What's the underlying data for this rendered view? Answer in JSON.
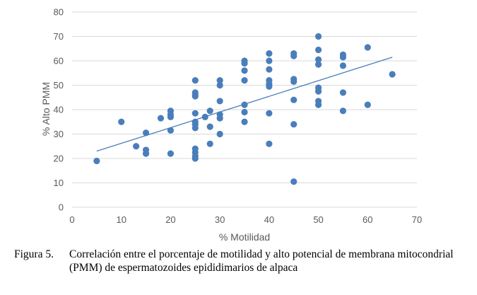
{
  "chart_data": {
    "type": "scatter",
    "title": "",
    "xlabel": "% Motilidad",
    "ylabel": "% Alto PMM",
    "xlim": [
      0,
      70
    ],
    "ylim": [
      0,
      80
    ],
    "xticks": [
      0,
      10,
      20,
      30,
      40,
      50,
      60,
      70
    ],
    "yticks": [
      0,
      10,
      20,
      30,
      40,
      50,
      60,
      70,
      80
    ],
    "grid": "horizontal",
    "point_color": "#4a7ebb",
    "trendline": {
      "x": [
        5,
        65
      ],
      "y": [
        23,
        61.5
      ],
      "color": "#4a7ebb"
    },
    "points": [
      [
        5,
        19
      ],
      [
        10,
        35
      ],
      [
        13,
        25
      ],
      [
        15,
        30.5
      ],
      [
        15,
        23.5
      ],
      [
        15,
        22
      ],
      [
        18,
        36.5
      ],
      [
        20,
        39.5
      ],
      [
        20,
        38
      ],
      [
        20,
        37
      ],
      [
        20,
        31.5
      ],
      [
        20,
        22
      ],
      [
        25,
        52
      ],
      [
        25,
        47
      ],
      [
        25,
        46
      ],
      [
        25,
        45.5
      ],
      [
        25,
        38.5
      ],
      [
        25,
        35
      ],
      [
        25,
        34
      ],
      [
        25,
        32.5
      ],
      [
        25,
        24
      ],
      [
        25,
        22.5
      ],
      [
        25,
        21
      ],
      [
        25,
        20
      ],
      [
        27,
        37
      ],
      [
        28,
        39.5
      ],
      [
        28,
        33
      ],
      [
        28,
        26
      ],
      [
        30,
        52
      ],
      [
        30,
        50
      ],
      [
        30,
        43.5
      ],
      [
        30,
        38
      ],
      [
        30,
        36.5
      ],
      [
        30,
        30
      ],
      [
        35,
        60
      ],
      [
        35,
        59
      ],
      [
        35,
        56
      ],
      [
        35,
        52
      ],
      [
        35,
        42
      ],
      [
        35,
        39
      ],
      [
        35,
        35
      ],
      [
        40,
        63
      ],
      [
        40,
        60
      ],
      [
        40,
        56.5
      ],
      [
        40,
        52
      ],
      [
        40,
        50.5
      ],
      [
        40,
        49.5
      ],
      [
        40,
        38.5
      ],
      [
        40,
        26
      ],
      [
        45,
        63
      ],
      [
        45,
        62
      ],
      [
        45,
        52.5
      ],
      [
        45,
        51.5
      ],
      [
        45,
        44
      ],
      [
        45,
        34
      ],
      [
        45,
        10.5
      ],
      [
        50,
        70
      ],
      [
        50,
        64.5
      ],
      [
        50,
        60.5
      ],
      [
        50,
        58.5
      ],
      [
        50,
        49
      ],
      [
        50,
        47.5
      ],
      [
        50,
        43.5
      ],
      [
        50,
        42
      ],
      [
        55,
        62.5
      ],
      [
        55,
        61.5
      ],
      [
        55,
        58
      ],
      [
        55,
        47
      ],
      [
        55,
        39.5
      ],
      [
        60,
        65.5
      ],
      [
        60,
        42
      ],
      [
        65,
        54.5
      ]
    ]
  },
  "caption": {
    "label": "Figura 5.",
    "text": "Correlación entre el porcentaje de motilidad y alto potencial de membrana mitocondrial (PMM) de espermatozoides epididimarios de alpaca"
  }
}
